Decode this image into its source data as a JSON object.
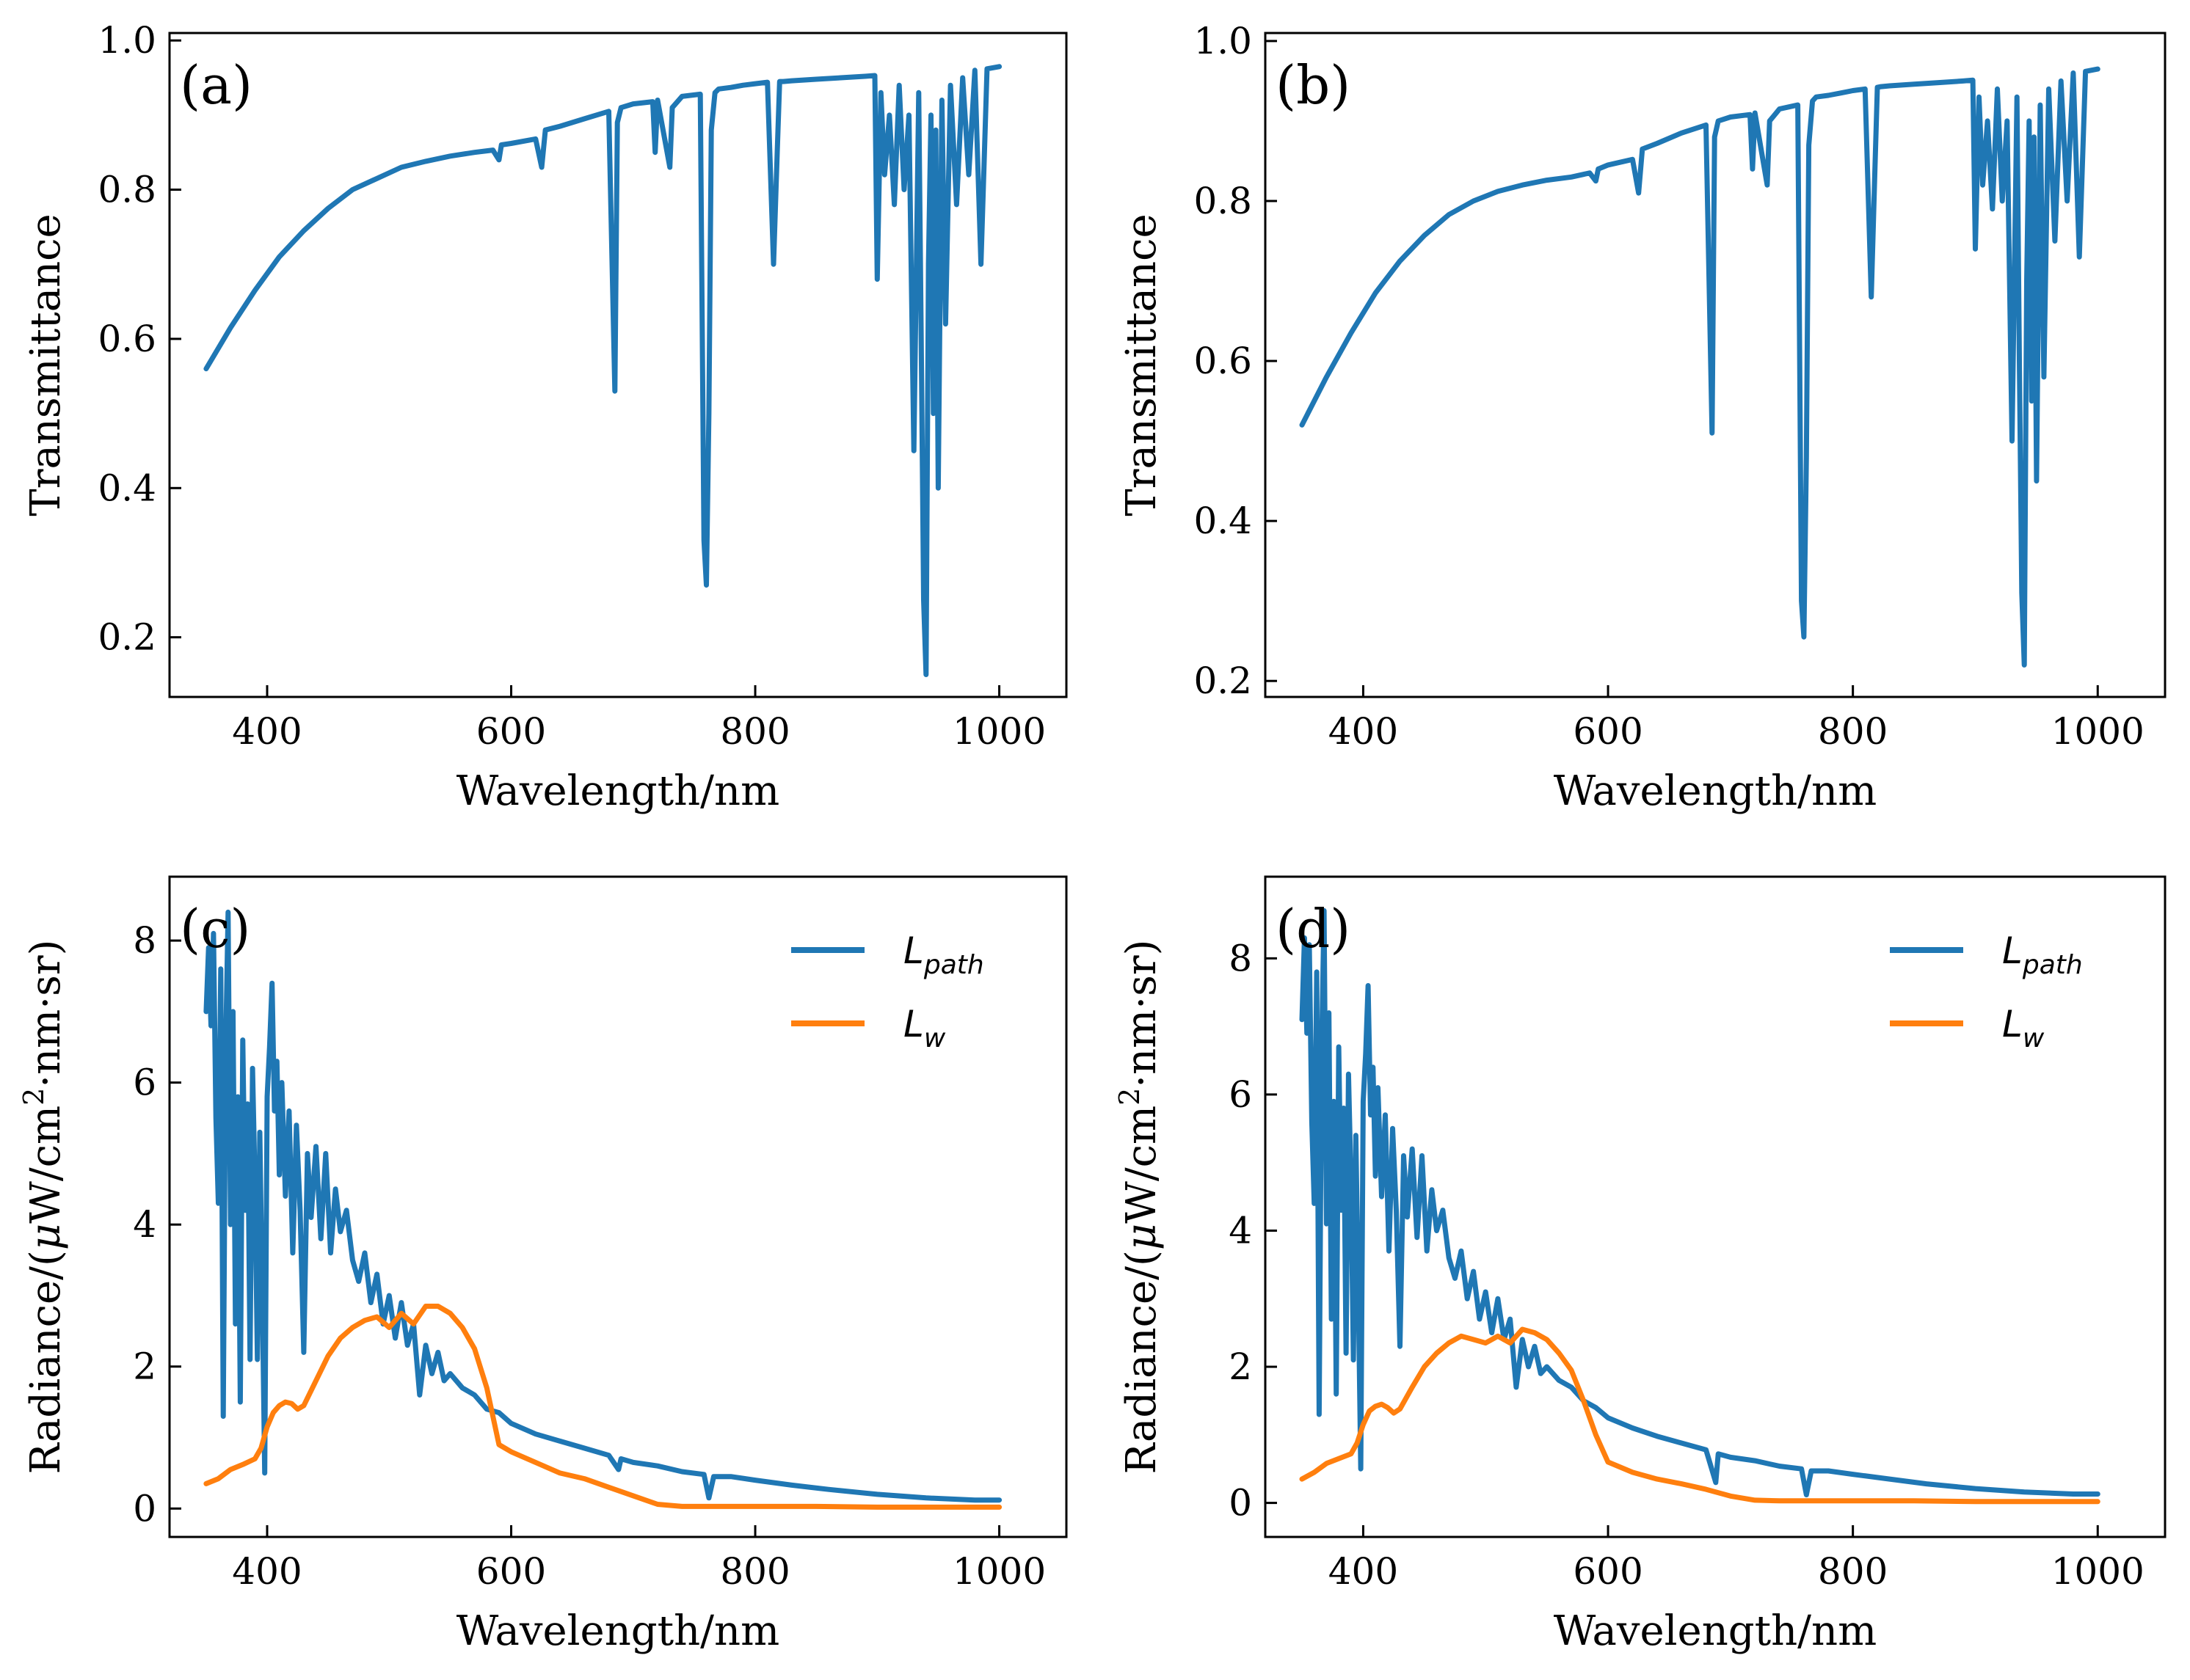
{
  "colors": {
    "blue": "#1f77b4",
    "orange": "#ff7f0e",
    "axis": "#000000"
  },
  "chart_data": [
    {
      "id": "a",
      "type": "line",
      "panel_label": "(a)",
      "xlabel": "Wavelength/nm",
      "ylabel": "Transmittance",
      "xlim": [
        320,
        1055
      ],
      "ylim": [
        0.12,
        1.01
      ],
      "xticks": [
        400,
        600,
        800,
        1000
      ],
      "xtick_labels": [
        "400",
        "600",
        "800",
        "1000"
      ],
      "yticks": [
        0.2,
        0.4,
        0.6,
        0.8,
        1.0
      ],
      "ytick_labels": [
        "0.2",
        "0.4",
        "0.6",
        "0.8",
        "1.0"
      ],
      "series": [
        {
          "name": "Transmittance",
          "color_key": "blue",
          "x": [
            350,
            370,
            390,
            410,
            430,
            450,
            470,
            490,
            510,
            530,
            550,
            570,
            585,
            590,
            592,
            600,
            620,
            625,
            628,
            640,
            660,
            680,
            685,
            687,
            690,
            700,
            716,
            718,
            720,
            730,
            732,
            740,
            755,
            758,
            760,
            762,
            764,
            767,
            770,
            780,
            790,
            800,
            810,
            815,
            818,
            820,
            823,
            830,
            850,
            870,
            890,
            898,
            900,
            903,
            906,
            910,
            914,
            918,
            922,
            926,
            930,
            934,
            936,
            938,
            940,
            942,
            944,
            946,
            948,
            950,
            953,
            956,
            960,
            965,
            970,
            975,
            980,
            985,
            990,
            1000
          ],
          "y": [
            0.56,
            0.615,
            0.665,
            0.71,
            0.745,
            0.775,
            0.8,
            0.815,
            0.83,
            0.838,
            0.845,
            0.85,
            0.853,
            0.84,
            0.86,
            0.862,
            0.868,
            0.83,
            0.88,
            0.885,
            0.895,
            0.905,
            0.53,
            0.89,
            0.91,
            0.915,
            0.918,
            0.85,
            0.92,
            0.83,
            0.91,
            0.925,
            0.928,
            0.33,
            0.27,
            0.5,
            0.88,
            0.93,
            0.935,
            0.937,
            0.94,
            0.942,
            0.944,
            0.7,
            0.85,
            0.945,
            0.945,
            0.946,
            0.948,
            0.95,
            0.952,
            0.953,
            0.68,
            0.93,
            0.82,
            0.9,
            0.78,
            0.94,
            0.8,
            0.9,
            0.45,
            0.93,
            0.6,
            0.25,
            0.15,
            0.7,
            0.9,
            0.5,
            0.88,
            0.4,
            0.92,
            0.62,
            0.94,
            0.78,
            0.95,
            0.82,
            0.96,
            0.7,
            0.962,
            0.965
          ]
        }
      ]
    },
    {
      "id": "b",
      "type": "line",
      "panel_label": "(b)",
      "xlabel": "Wavelength/nm",
      "ylabel": "Transmittance",
      "xlim": [
        320,
        1055
      ],
      "ylim": [
        0.18,
        1.01
      ],
      "xticks": [
        400,
        600,
        800,
        1000
      ],
      "xtick_labels": [
        "400",
        "600",
        "800",
        "1000"
      ],
      "yticks": [
        0.2,
        0.4,
        0.6,
        0.8,
        1.0
      ],
      "ytick_labels": [
        "0.2",
        "0.4",
        "0.6",
        "0.8",
        "1.0"
      ],
      "series": [
        {
          "name": "Transmittance",
          "color_key": "blue",
          "x": [
            350,
            370,
            390,
            410,
            430,
            450,
            470,
            490,
            510,
            530,
            550,
            570,
            585,
            590,
            592,
            600,
            620,
            625,
            628,
            640,
            660,
            680,
            685,
            687,
            690,
            700,
            716,
            718,
            720,
            730,
            732,
            740,
            755,
            758,
            760,
            762,
            764,
            767,
            770,
            780,
            790,
            800,
            810,
            815,
            818,
            820,
            823,
            830,
            850,
            870,
            890,
            898,
            900,
            903,
            906,
            910,
            914,
            918,
            922,
            926,
            930,
            934,
            936,
            938,
            940,
            942,
            944,
            946,
            948,
            950,
            953,
            956,
            960,
            965,
            970,
            975,
            980,
            985,
            990,
            1000
          ],
          "y": [
            0.52,
            0.58,
            0.635,
            0.685,
            0.725,
            0.757,
            0.783,
            0.8,
            0.812,
            0.82,
            0.826,
            0.83,
            0.835,
            0.825,
            0.84,
            0.845,
            0.852,
            0.81,
            0.865,
            0.872,
            0.885,
            0.895,
            0.51,
            0.88,
            0.9,
            0.905,
            0.908,
            0.84,
            0.91,
            0.82,
            0.9,
            0.915,
            0.92,
            0.3,
            0.255,
            0.48,
            0.87,
            0.925,
            0.93,
            0.932,
            0.935,
            0.938,
            0.94,
            0.68,
            0.84,
            0.942,
            0.943,
            0.944,
            0.946,
            0.948,
            0.95,
            0.951,
            0.74,
            0.93,
            0.82,
            0.9,
            0.79,
            0.94,
            0.8,
            0.9,
            0.5,
            0.93,
            0.6,
            0.31,
            0.22,
            0.7,
            0.9,
            0.55,
            0.88,
            0.45,
            0.92,
            0.58,
            0.94,
            0.75,
            0.95,
            0.8,
            0.96,
            0.73,
            0.962,
            0.965
          ]
        }
      ]
    },
    {
      "id": "c",
      "type": "line",
      "panel_label": "(c)",
      "xlabel": "Wavelength/nm",
      "ylabel_parts": [
        "Radiance/(",
        "μ",
        "W/cm",
        "2",
        "·nm·sr)"
      ],
      "xlim": [
        320,
        1055
      ],
      "ylim": [
        -0.4,
        8.9
      ],
      "xticks": [
        400,
        600,
        800,
        1000
      ],
      "xtick_labels": [
        "400",
        "600",
        "800",
        "1000"
      ],
      "yticks": [
        0,
        2,
        4,
        6,
        8
      ],
      "ytick_labels": [
        "0",
        "2",
        "4",
        "6",
        "8"
      ],
      "legend": {
        "position": "top-right",
        "entries": [
          {
            "main": "L",
            "sub": "path",
            "color_key": "blue"
          },
          {
            "main": "L",
            "sub": "w",
            "color_key": "orange"
          }
        ]
      },
      "series": [
        {
          "name": "L_path",
          "color_key": "blue",
          "x": [
            350,
            352,
            354,
            356,
            358,
            360,
            362,
            364,
            366,
            368,
            370,
            372,
            374,
            376,
            378,
            380,
            382,
            384,
            386,
            388,
            390,
            392,
            394,
            396,
            398,
            400,
            402,
            404,
            406,
            408,
            410,
            412,
            415,
            418,
            421,
            424,
            427,
            430,
            433,
            436,
            440,
            444,
            448,
            452,
            456,
            460,
            465,
            470,
            475,
            480,
            485,
            490,
            495,
            500,
            505,
            510,
            515,
            520,
            525,
            530,
            535,
            540,
            545,
            550,
            560,
            570,
            580,
            590,
            600,
            620,
            640,
            660,
            680,
            688,
            690,
            700,
            720,
            740,
            758,
            762,
            766,
            780,
            800,
            830,
            860,
            900,
            940,
            980,
            1000
          ],
          "y": [
            7.0,
            7.9,
            6.8,
            8.1,
            5.5,
            4.3,
            7.6,
            1.3,
            6.5,
            8.4,
            4.0,
            7.0,
            2.6,
            5.8,
            1.5,
            6.6,
            4.2,
            5.7,
            2.1,
            6.2,
            4.6,
            2.1,
            5.3,
            3.0,
            0.5,
            5.8,
            6.5,
            7.4,
            5.6,
            6.3,
            4.7,
            6.0,
            4.4,
            5.6,
            3.6,
            5.4,
            4.2,
            2.2,
            5.0,
            4.1,
            5.1,
            3.8,
            5.0,
            3.6,
            4.5,
            3.9,
            4.2,
            3.5,
            3.2,
            3.6,
            2.9,
            3.3,
            2.6,
            3.0,
            2.4,
            2.9,
            2.3,
            2.6,
            1.6,
            2.3,
            1.9,
            2.2,
            1.8,
            1.9,
            1.7,
            1.6,
            1.4,
            1.35,
            1.2,
            1.05,
            0.95,
            0.85,
            0.75,
            0.55,
            0.7,
            0.65,
            0.6,
            0.52,
            0.48,
            0.15,
            0.45,
            0.45,
            0.4,
            0.33,
            0.27,
            0.2,
            0.15,
            0.12,
            0.12
          ]
        },
        {
          "name": "L_w",
          "color_key": "orange",
          "x": [
            350,
            360,
            370,
            380,
            390,
            395,
            400,
            405,
            410,
            415,
            420,
            425,
            430,
            440,
            450,
            460,
            470,
            480,
            490,
            500,
            510,
            520,
            530,
            540,
            550,
            560,
            570,
            580,
            590,
            600,
            620,
            640,
            660,
            680,
            700,
            720,
            740,
            760,
            800,
            850,
            900,
            950,
            1000
          ],
          "y": [
            0.35,
            0.42,
            0.55,
            0.62,
            0.7,
            0.85,
            1.15,
            1.35,
            1.45,
            1.5,
            1.48,
            1.4,
            1.45,
            1.8,
            2.15,
            2.4,
            2.55,
            2.65,
            2.7,
            2.55,
            2.75,
            2.6,
            2.85,
            2.85,
            2.75,
            2.55,
            2.25,
            1.7,
            0.9,
            0.8,
            0.65,
            0.5,
            0.42,
            0.3,
            0.18,
            0.06,
            0.03,
            0.03,
            0.03,
            0.03,
            0.02,
            0.02,
            0.02
          ]
        }
      ]
    },
    {
      "id": "d",
      "type": "line",
      "panel_label": "(d)",
      "xlabel": "Wavelength/nm",
      "ylabel_parts": [
        "Radiance/(",
        "μ",
        "W/cm",
        "2",
        "·nm·sr)"
      ],
      "xlim": [
        320,
        1055
      ],
      "ylim": [
        -0.5,
        9.2
      ],
      "xticks": [
        400,
        600,
        800,
        1000
      ],
      "xtick_labels": [
        "400",
        "600",
        "800",
        "1000"
      ],
      "yticks": [
        0,
        2,
        4,
        6,
        8
      ],
      "ytick_labels": [
        "0",
        "2",
        "4",
        "6",
        "8"
      ],
      "legend": {
        "position": "top-right",
        "entries": [
          {
            "main": "L",
            "sub": "path",
            "color_key": "blue"
          },
          {
            "main": "L",
            "sub": "w",
            "color_key": "orange"
          }
        ]
      },
      "series": [
        {
          "name": "L_path",
          "color_key": "blue",
          "x": [
            350,
            352,
            354,
            356,
            358,
            360,
            362,
            364,
            366,
            368,
            370,
            372,
            374,
            376,
            378,
            380,
            382,
            384,
            386,
            388,
            390,
            392,
            394,
            396,
            398,
            400,
            402,
            404,
            406,
            408,
            410,
            412,
            415,
            418,
            421,
            424,
            427,
            430,
            433,
            436,
            440,
            444,
            448,
            452,
            456,
            460,
            465,
            470,
            475,
            480,
            485,
            490,
            495,
            500,
            505,
            510,
            515,
            520,
            525,
            530,
            535,
            540,
            545,
            550,
            560,
            570,
            580,
            590,
            600,
            620,
            640,
            660,
            680,
            688,
            690,
            700,
            720,
            740,
            758,
            762,
            766,
            780,
            800,
            830,
            860,
            900,
            940,
            980,
            1000
          ],
          "y": [
            7.1,
            8.3,
            6.9,
            8.2,
            5.6,
            4.4,
            7.8,
            1.3,
            6.6,
            8.7,
            4.1,
            7.2,
            2.7,
            5.9,
            1.6,
            6.7,
            4.3,
            5.8,
            2.2,
            6.3,
            4.7,
            2.1,
            5.4,
            3.1,
            0.5,
            5.9,
            6.6,
            7.6,
            5.7,
            6.4,
            4.8,
            6.1,
            4.5,
            5.7,
            3.7,
            5.5,
            4.3,
            2.3,
            5.1,
            4.2,
            5.2,
            3.9,
            5.1,
            3.7,
            4.6,
            4.0,
            4.3,
            3.6,
            3.3,
            3.7,
            3.0,
            3.4,
            2.7,
            3.1,
            2.5,
            3.0,
            2.4,
            2.7,
            1.7,
            2.4,
            2.0,
            2.3,
            1.9,
            2.0,
            1.8,
            1.7,
            1.5,
            1.4,
            1.25,
            1.1,
            0.98,
            0.88,
            0.78,
            0.3,
            0.72,
            0.67,
            0.62,
            0.54,
            0.5,
            0.12,
            0.47,
            0.47,
            0.42,
            0.35,
            0.28,
            0.21,
            0.16,
            0.13,
            0.13
          ]
        },
        {
          "name": "L_w",
          "color_key": "orange",
          "x": [
            350,
            360,
            370,
            380,
            390,
            395,
            400,
            405,
            410,
            415,
            420,
            425,
            430,
            440,
            450,
            460,
            470,
            480,
            490,
            500,
            510,
            520,
            530,
            540,
            550,
            560,
            570,
            580,
            590,
            600,
            620,
            640,
            660,
            680,
            700,
            720,
            740,
            760,
            800,
            850,
            900,
            950,
            1000
          ],
          "y": [
            0.35,
            0.45,
            0.58,
            0.65,
            0.72,
            0.88,
            1.15,
            1.35,
            1.42,
            1.45,
            1.4,
            1.32,
            1.38,
            1.7,
            2.0,
            2.2,
            2.35,
            2.45,
            2.4,
            2.35,
            2.45,
            2.35,
            2.55,
            2.5,
            2.4,
            2.2,
            1.95,
            1.5,
            1.0,
            0.6,
            0.45,
            0.35,
            0.28,
            0.2,
            0.1,
            0.04,
            0.03,
            0.03,
            0.03,
            0.03,
            0.02,
            0.02,
            0.02
          ]
        }
      ]
    }
  ]
}
